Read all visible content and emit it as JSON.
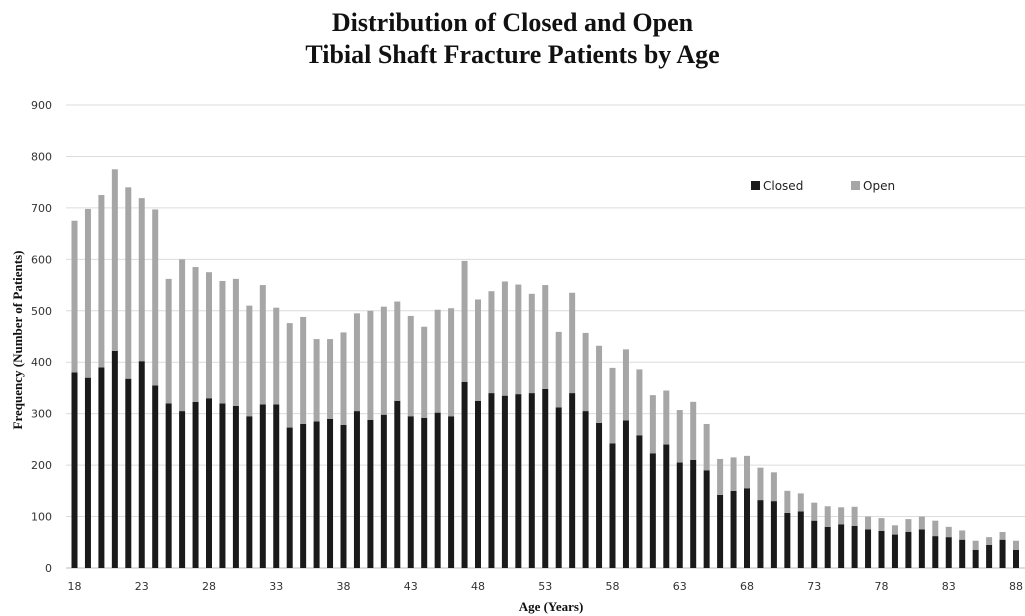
{
  "chart_data": {
    "type": "bar",
    "stacked": true,
    "title_lines": [
      "Distribution of Closed and Open",
      "Tibial Shaft Fracture Patients by Age"
    ],
    "xlabel": "Age (Years)",
    "ylabel": "Frequency (Number of Patients)",
    "ylim": [
      0,
      900
    ],
    "yticks": [
      0,
      100,
      200,
      300,
      400,
      500,
      600,
      700,
      800,
      900
    ],
    "xtick_labels": [
      "18",
      "23",
      "28",
      "33",
      "38",
      "43",
      "48",
      "53",
      "58",
      "63",
      "68",
      "73",
      "78",
      "83",
      "88"
    ],
    "grid": true,
    "legend_position": "top-right",
    "categories": [
      18,
      19,
      20,
      21,
      22,
      23,
      24,
      25,
      26,
      27,
      28,
      29,
      30,
      31,
      32,
      33,
      34,
      35,
      36,
      37,
      38,
      39,
      40,
      41,
      42,
      43,
      44,
      45,
      46,
      47,
      48,
      49,
      50,
      51,
      52,
      53,
      54,
      55,
      56,
      57,
      58,
      59,
      60,
      61,
      62,
      63,
      64,
      65,
      66,
      67,
      68,
      69,
      70,
      71,
      72,
      73,
      74,
      75,
      76,
      77,
      78,
      79,
      80,
      81,
      82,
      83,
      84,
      85,
      86,
      87,
      88,
      89
    ],
    "series": [
      {
        "name": "Closed",
        "color": "#1a1a1a",
        "values": [
          380,
          370,
          390,
          422,
          368,
          402,
          355,
          320,
          305,
          323,
          330,
          320,
          315,
          295,
          318,
          318,
          273,
          280,
          285,
          290,
          278,
          305,
          288,
          298,
          325,
          295,
          292,
          302,
          295,
          362,
          325,
          340,
          335,
          338,
          340,
          348,
          312,
          340,
          305,
          282,
          242,
          287,
          258,
          223,
          240,
          205,
          210,
          190,
          142,
          150,
          155,
          132,
          130,
          107,
          110,
          92,
          80,
          85,
          82,
          75,
          72,
          65,
          70,
          75,
          62,
          60,
          55,
          35,
          45,
          55,
          35,
          40
        ]
      },
      {
        "name": "Open",
        "color": "#a6a6a6",
        "values": [
          295,
          328,
          335,
          353,
          372,
          317,
          342,
          242,
          295,
          262,
          245,
          238,
          247,
          215,
          232,
          188,
          203,
          208,
          160,
          155,
          180,
          190,
          212,
          210,
          193,
          195,
          177,
          200,
          210,
          235,
          197,
          198,
          222,
          213,
          193,
          202,
          147,
          195,
          152,
          150,
          147,
          138,
          128,
          113,
          105,
          102,
          113,
          90,
          70,
          65,
          63,
          63,
          56,
          43,
          35,
          35,
          40,
          33,
          37,
          25,
          25,
          18,
          25,
          25,
          30,
          20,
          18,
          18,
          15,
          15,
          18,
          15
        ]
      }
    ]
  }
}
